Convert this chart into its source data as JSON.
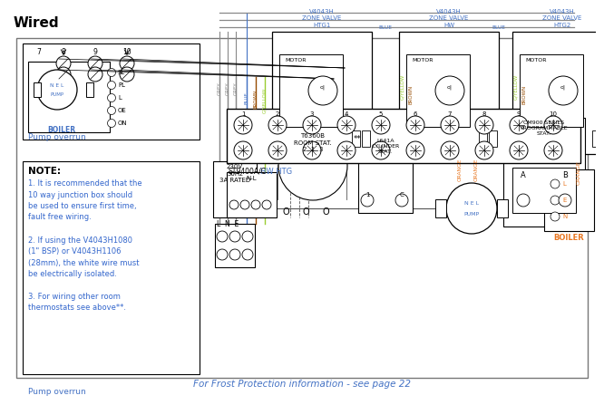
{
  "title": "Wired",
  "bg_color": "#ffffff",
  "note_title": "NOTE:",
  "note_lines": [
    "1. It is recommended that the",
    "10 way junction box should",
    "be used to ensure first time,",
    "fault free wiring.",
    "",
    "2. If using the V4043H1080",
    "(1\" BSP) or V4043H1106",
    "(28mm), the white wire must",
    "be electrically isolated.",
    "",
    "3. For wiring other room",
    "thermostats see above**."
  ],
  "pump_overrun_label": "Pump overrun",
  "footer_text": "For Frost Protection information - see page 22",
  "zone_valve_labels": [
    "V4043H\nZONE VALVE\nHTG1",
    "V4043H\nZONE VALVE\nHW",
    "V4043H\nZONE VALVE\nHTG2"
  ],
  "motor_label": "MOTOR",
  "wire_colors": {
    "grey": "#888888",
    "blue": "#4472C4",
    "brown": "#964B00",
    "gyellow": "#9ACD32",
    "orange": "#E87722",
    "black": "#000000",
    "dark_grey": "#555555"
  },
  "power_label": "230V\n50Hz\n3A RATED",
  "lne_label": "L  N  E",
  "room_stat_label": "T6360B\nROOM STAT.\n2  1  3",
  "cylinder_stat_label": "L641A\nCYLINDER\nSTAT.",
  "cm900_label": "CM900 SERIES\nPROGRAMMABLE\nSTAT.",
  "hw_htg_label": "HW HTG",
  "st9400_label": "ST9400A/C",
  "boiler_label": "BOILER",
  "pump_label": "PUMP",
  "boiler_right_label": "BOILER",
  "n_l_label": "N-L"
}
